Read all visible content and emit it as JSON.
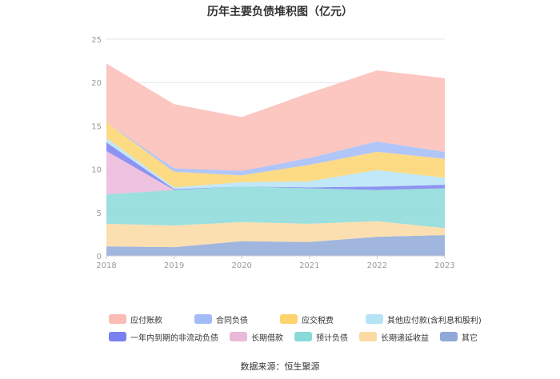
{
  "chart_data": {
    "type": "area",
    "stacked": true,
    "title": "历年主要负债堆积图（亿元）",
    "x": [
      "2018",
      "2019",
      "2020",
      "2021",
      "2022",
      "2023"
    ],
    "ylim": [
      0,
      25
    ],
    "yticks": [
      0,
      5,
      10,
      15,
      20,
      25
    ],
    "grid": true,
    "legend_position": "bottom",
    "series": [
      {
        "name": "其它",
        "color": "#8fa9d8",
        "values": [
          1.1,
          1.0,
          1.7,
          1.6,
          2.2,
          2.4
        ]
      },
      {
        "name": "长期递延收益",
        "color": "#fcd9a2",
        "values": [
          2.6,
          2.5,
          2.2,
          2.1,
          1.8,
          0.8
        ]
      },
      {
        "name": "预计负债",
        "color": "#8ad9d9",
        "values": [
          3.4,
          4.1,
          4.1,
          4.1,
          3.6,
          4.6
        ]
      },
      {
        "name": "长期借款",
        "color": "#eab8d9",
        "values": [
          5.0,
          0.0,
          0.0,
          0.0,
          0.0,
          0.0
        ]
      },
      {
        "name": "一年内到期的非流动负债",
        "color": "#7a80f0",
        "values": [
          1.0,
          0.1,
          0.0,
          0.1,
          0.4,
          0.4
        ]
      },
      {
        "name": "其他应付款(含利息和股利)",
        "color": "#b5e4f7",
        "values": [
          0.5,
          0.2,
          0.5,
          0.7,
          1.9,
          0.8
        ]
      },
      {
        "name": "应交税费",
        "color": "#fdd36e",
        "values": [
          1.8,
          1.8,
          0.8,
          1.9,
          2.1,
          2.2
        ]
      },
      {
        "name": "合同负债",
        "color": "#a3bcf7",
        "values": [
          0.0,
          0.4,
          0.5,
          0.8,
          1.2,
          0.8
        ]
      },
      {
        "name": "应付账款",
        "color": "#fbbcb6",
        "values": [
          6.8,
          7.4,
          6.2,
          7.5,
          8.2,
          8.5
        ]
      }
    ]
  },
  "legend": {
    "row1": [
      {
        "label": "应付账款",
        "color": "#fbbcb6"
      },
      {
        "label": "合同负债",
        "color": "#a3bcf7"
      },
      {
        "label": "应交税费",
        "color": "#fdd36e"
      },
      {
        "label": "其他应付款(含利息和股利)",
        "color": "#b5e4f7"
      }
    ],
    "row2": [
      {
        "label": "一年内到期的非流动负债",
        "color": "#7a80f0"
      },
      {
        "label": "长期借款",
        "color": "#eab8d9"
      },
      {
        "label": "预计负债",
        "color": "#8ad9d9"
      },
      {
        "label": "长期递延收益",
        "color": "#fcd9a2"
      },
      {
        "label": "其它",
        "color": "#8fa9d8"
      }
    ]
  },
  "source": "数据来源：恒生聚源"
}
